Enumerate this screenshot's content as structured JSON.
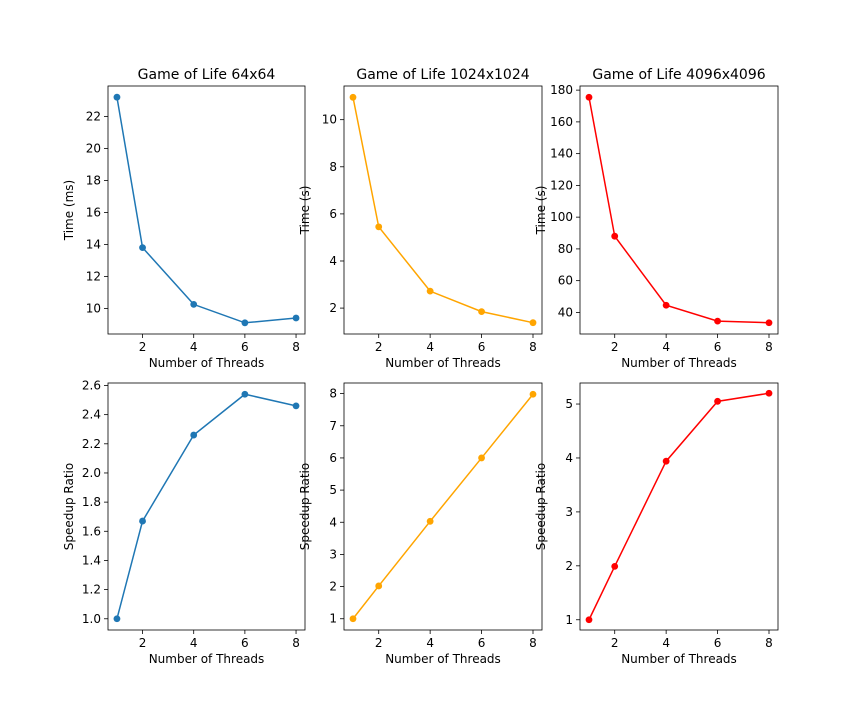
{
  "chart_data": [
    {
      "type": "line",
      "title": "Game of Life 64x64",
      "xlabel": "Number of Threads",
      "ylabel": "Time (ms)",
      "x": [
        1,
        2,
        4,
        6,
        8
      ],
      "series": [
        {
          "values": [
            23.2,
            13.8,
            10.25,
            9.1,
            9.4
          ]
        }
      ],
      "color": "#1f77b4",
      "xlim": [
        0.65,
        8.35
      ],
      "ylim": [
        8.4,
        23.9
      ],
      "xticks": [
        2,
        4,
        6,
        8
      ],
      "yticks": [
        10,
        12,
        14,
        16,
        18,
        20,
        22
      ],
      "grid": false
    },
    {
      "type": "line",
      "title": "Game of Life 1024x1024",
      "xlabel": "Number of Threads",
      "ylabel": "Time (s)",
      "x": [
        1,
        2,
        4,
        6,
        8
      ],
      "series": [
        {
          "values": [
            10.95,
            5.45,
            2.72,
            1.85,
            1.38
          ]
        }
      ],
      "color": "#ffa500",
      "xlim": [
        0.65,
        8.35
      ],
      "ylim": [
        0.9,
        11.43
      ],
      "xticks": [
        2,
        4,
        6,
        8
      ],
      "yticks": [
        2,
        4,
        6,
        8,
        10
      ],
      "grid": false
    },
    {
      "type": "line",
      "title": "Game of Life 4096x4096",
      "xlabel": "Number of Threads",
      "ylabel": "Time (s)",
      "x": [
        1,
        2,
        4,
        6,
        8
      ],
      "series": [
        {
          "values": [
            175.5,
            88.0,
            44.5,
            34.5,
            33.5
          ]
        }
      ],
      "color": "#ff0000",
      "xlim": [
        0.65,
        8.35
      ],
      "ylim": [
        26.4,
        182.6
      ],
      "xticks": [
        2,
        4,
        6,
        8
      ],
      "yticks": [
        40,
        60,
        80,
        100,
        120,
        140,
        160,
        180
      ],
      "grid": false
    },
    {
      "type": "line",
      "title": "",
      "xlabel": "Number of Threads",
      "ylabel": "Speedup Ratio",
      "x": [
        1,
        2,
        4,
        6,
        8
      ],
      "series": [
        {
          "values": [
            1.0,
            1.67,
            2.26,
            2.54,
            2.46
          ]
        }
      ],
      "color": "#1f77b4",
      "xlim": [
        0.65,
        8.35
      ],
      "ylim": [
        0.923,
        2.617
      ],
      "xticks": [
        2,
        4,
        6,
        8
      ],
      "yticks": [
        1.0,
        1.2,
        1.4,
        1.6,
        1.8,
        2.0,
        2.2,
        2.4,
        2.6
      ],
      "ytick_decimals": 1,
      "grid": false
    },
    {
      "type": "line",
      "title": "",
      "xlabel": "Number of Threads",
      "ylabel": "Speedup Ratio",
      "x": [
        1,
        2,
        4,
        6,
        8
      ],
      "series": [
        {
          "values": [
            1.0,
            2.02,
            4.03,
            6.0,
            7.98
          ]
        }
      ],
      "color": "#ffa500",
      "xlim": [
        0.65,
        8.35
      ],
      "ylim": [
        0.65,
        8.33
      ],
      "xticks": [
        2,
        4,
        6,
        8
      ],
      "yticks": [
        1,
        2,
        3,
        4,
        5,
        6,
        7,
        8
      ],
      "grid": false
    },
    {
      "type": "line",
      "title": "",
      "xlabel": "Number of Threads",
      "ylabel": "Speedup Ratio",
      "x": [
        1,
        2,
        4,
        6,
        8
      ],
      "series": [
        {
          "values": [
            1.0,
            1.99,
            3.94,
            5.05,
            5.2
          ]
        }
      ],
      "color": "#ff0000",
      "xlim": [
        0.65,
        8.35
      ],
      "ylim": [
        0.81,
        5.39
      ],
      "xticks": [
        2,
        4,
        6,
        8
      ],
      "yticks": [
        1,
        2,
        3,
        4,
        5
      ],
      "grid": false
    }
  ]
}
